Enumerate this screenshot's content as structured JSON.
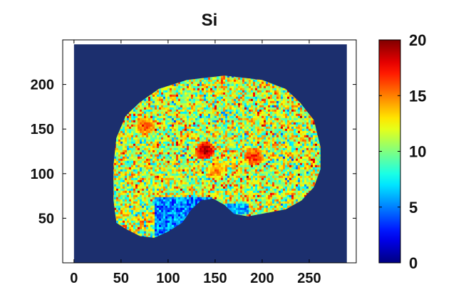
{
  "chart_data": {
    "type": "heatmap",
    "title": "Si",
    "xlabel": "",
    "ylabel": "",
    "xlim": [
      -12,
      300
    ],
    "ylim": [
      0,
      250
    ],
    "x_ticks": [
      0,
      50,
      100,
      150,
      200,
      250
    ],
    "x_tick_labels": [
      "0",
      "50",
      "100",
      "150",
      "200",
      "250"
    ],
    "y_ticks": [
      50,
      100,
      150,
      200
    ],
    "y_tick_labels": [
      "50",
      "100",
      "150",
      "200"
    ],
    "image_extent": {
      "x": [
        0,
        290
      ],
      "y": [
        0,
        245
      ]
    },
    "background_value": 0,
    "sample_region_outline": [
      [
        45,
        45
      ],
      [
        42,
        70
      ],
      [
        42,
        110
      ],
      [
        45,
        140
      ],
      [
        55,
        165
      ],
      [
        70,
        180
      ],
      [
        90,
        195
      ],
      [
        120,
        205
      ],
      [
        160,
        210
      ],
      [
        200,
        205
      ],
      [
        225,
        195
      ],
      [
        240,
        180
      ],
      [
        255,
        160
      ],
      [
        262,
        130
      ],
      [
        262,
        105
      ],
      [
        255,
        85
      ],
      [
        242,
        70
      ],
      [
        225,
        60
      ],
      [
        200,
        55
      ],
      [
        185,
        52
      ],
      [
        170,
        55
      ],
      [
        160,
        65
      ],
      [
        148,
        72
      ],
      [
        135,
        70
      ],
      [
        125,
        60
      ],
      [
        115,
        45
      ],
      [
        100,
        35
      ],
      [
        85,
        28
      ],
      [
        70,
        30
      ],
      [
        55,
        38
      ]
    ],
    "low_value_regions": [
      {
        "x": [
          85,
          145
        ],
        "y": [
          28,
          75
        ],
        "value": 5
      },
      {
        "x": [
          160,
          185
        ],
        "y": [
          55,
          68
        ],
        "value": 6
      }
    ],
    "hot_spots": [
      {
        "x": 138,
        "y": 127,
        "value": 20
      },
      {
        "x": 190,
        "y": 120,
        "value": 18
      },
      {
        "x": 75,
        "y": 155,
        "value": 17
      },
      {
        "x": 150,
        "y": 105,
        "value": 16
      }
    ],
    "value_mean": 11.5,
    "value_spread": 4,
    "colorbar": {
      "colormap": "jet",
      "min": 0,
      "max": 20,
      "ticks": [
        0,
        5,
        10,
        15,
        20
      ],
      "tick_labels": [
        "0",
        "5",
        "10",
        "15",
        "20"
      ]
    },
    "grid": false,
    "colors": {
      "background_field": "#1c2f6e",
      "axes_stroke": "#000000",
      "colormap_stops": [
        "#00008f",
        "#0000ff",
        "#00ffff",
        "#ffff00",
        "#ff0000",
        "#800000"
      ]
    }
  }
}
